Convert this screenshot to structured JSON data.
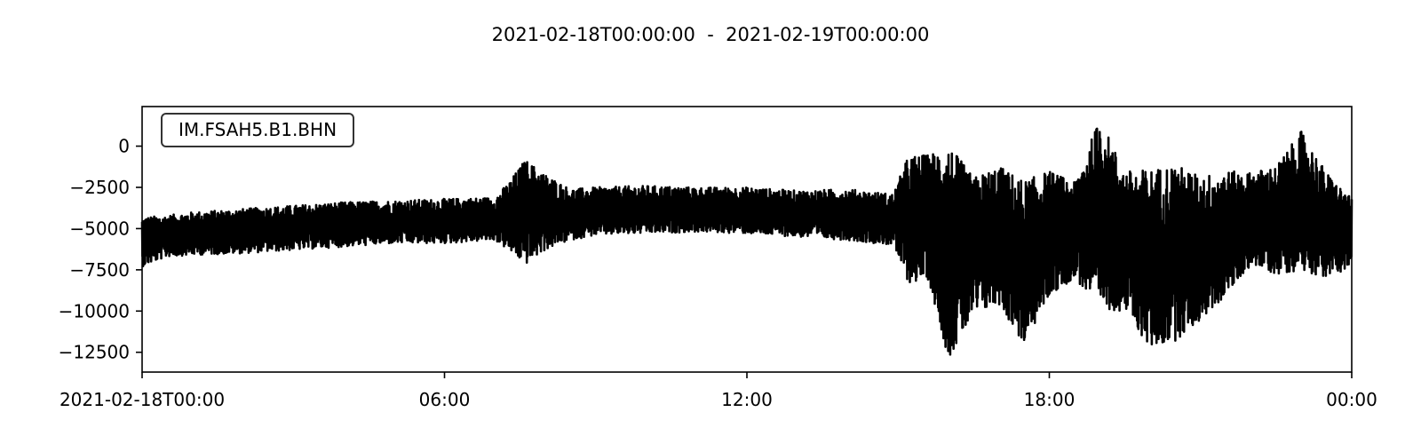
{
  "chart_data": {
    "type": "line",
    "title": "2021-02-18T00:00:00  -  2021-02-19T00:00:00",
    "trace_label": "IM.FSAH5.B1.BHN",
    "xlabel": "",
    "ylabel": "",
    "x_range_hours": [
      0,
      24
    ],
    "ylim": [
      -13700,
      2400
    ],
    "y_ticks": [
      0,
      -2500,
      -5000,
      -7500,
      -10000,
      -12500
    ],
    "y_tick_labels": [
      "0",
      "−2500",
      "−5000",
      "−7500",
      "−10000",
      "−12500"
    ],
    "x_tick_hours": [
      0,
      6,
      12,
      18,
      24
    ],
    "x_tick_labels": [
      "2021-02-18T00:00",
      "06:00",
      "12:00",
      "18:00",
      "00:00"
    ],
    "line_color": "#000000",
    "envelope": {
      "hours": [
        0,
        0.5,
        1,
        2,
        3,
        4,
        5,
        6,
        7,
        7.3,
        7.6,
        8,
        8.5,
        9,
        10,
        11,
        12,
        13,
        14,
        14.9,
        15.2,
        15.6,
        16,
        16.5,
        17,
        17.5,
        18,
        18.5,
        19,
        19.5,
        20,
        20.5,
        21,
        21.5,
        22,
        22.5,
        23,
        23.5,
        24
      ],
      "upper": [
        -4300,
        -4200,
        -4000,
        -3800,
        -3600,
        -3400,
        -3300,
        -3200,
        -3100,
        -2100,
        -800,
        -1700,
        -2600,
        -2500,
        -2400,
        -2500,
        -2500,
        -2700,
        -2600,
        -2900,
        -600,
        -500,
        100,
        -1900,
        -1200,
        -2100,
        -1500,
        -2200,
        1700,
        -1500,
        -1400,
        -1100,
        -1800,
        -1500,
        -1600,
        -1200,
        900,
        -1600,
        -3200
      ],
      "lower": [
        -7300,
        -6700,
        -6600,
        -6500,
        -6300,
        -6100,
        -5900,
        -5900,
        -5700,
        -6400,
        -7200,
        -6300,
        -5700,
        -5400,
        -5300,
        -5200,
        -5300,
        -5500,
        -5700,
        -6000,
        -8300,
        -8100,
        -12900,
        -10300,
        -9600,
        -12100,
        -9100,
        -8000,
        -9900,
        -10000,
        -12300,
        -11800,
        -10600,
        -9100,
        -7200,
        -7800,
        -7500,
        -8000,
        -7300
      ]
    }
  }
}
